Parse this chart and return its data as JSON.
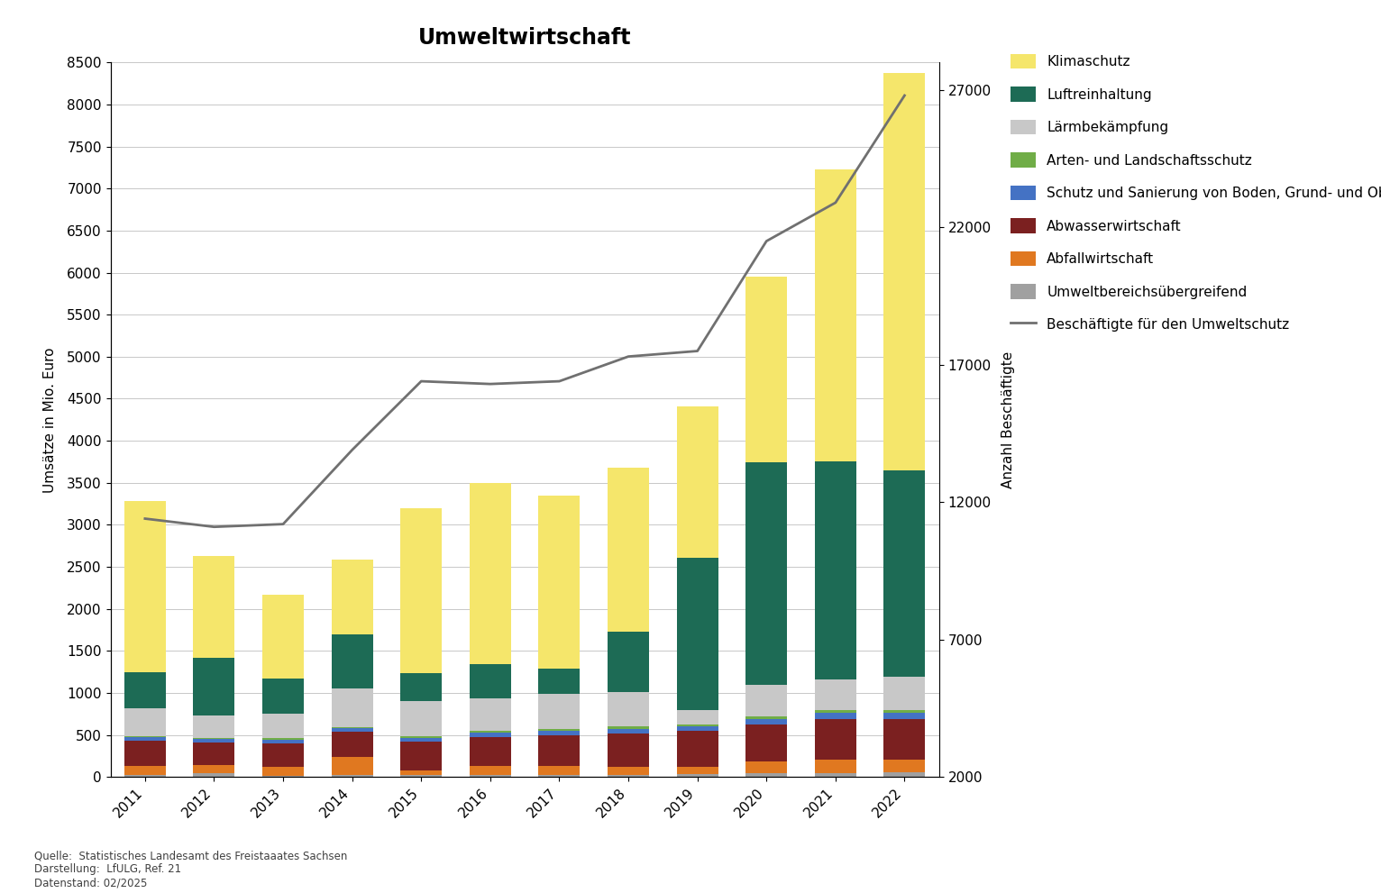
{
  "years": [
    2011,
    2012,
    2013,
    2014,
    2015,
    2016,
    2017,
    2018,
    2019,
    2020,
    2021,
    2022
  ],
  "title": "Umweltwirtschaft",
  "ylabel_left": "Umsätze in Mio. Euro",
  "ylabel_right": "Anzahl Beschäftigte",
  "ylim_left": [
    0,
    8500
  ],
  "ylim_right": [
    2000,
    28000
  ],
  "yticks_left": [
    0,
    500,
    1000,
    1500,
    2000,
    2500,
    3000,
    3500,
    4000,
    4500,
    5000,
    5500,
    6000,
    6500,
    7000,
    7500,
    8000,
    8500
  ],
  "yticks_right": [
    2000,
    7000,
    12000,
    17000,
    22000,
    27000
  ],
  "segments": {
    "Umweltbereichsübergreifend": {
      "color": "#a0a0a0",
      "values": [
        25,
        40,
        15,
        20,
        25,
        25,
        25,
        25,
        30,
        45,
        50,
        55
      ]
    },
    "Abfallwirtschaft": {
      "color": "#e07820",
      "values": [
        105,
        100,
        100,
        220,
        50,
        110,
        110,
        95,
        95,
        140,
        155,
        150
      ]
    },
    "Abwasserwirtschaft": {
      "color": "#7b2020",
      "values": [
        300,
        270,
        285,
        300,
        340,
        340,
        360,
        400,
        420,
        440,
        480,
        480
      ]
    },
    "Schutz und Sanierung von Boden, Grund-\nund Oberflächenwasser": {
      "color": "#4472c4",
      "values": [
        40,
        38,
        40,
        38,
        45,
        50,
        50,
        55,
        55,
        65,
        75,
        75
      ]
    },
    "Arten- und Landschaftsschutz": {
      "color": "#70ad47",
      "values": [
        18,
        18,
        18,
        18,
        22,
        22,
        22,
        22,
        25,
        25,
        30,
        35
      ]
    },
    "Lärmbekämpfung": {
      "color": "#c8c8c8",
      "values": [
        330,
        265,
        295,
        455,
        420,
        385,
        420,
        415,
        175,
        385,
        370,
        395
      ]
    },
    "Luftreinhaltung": {
      "color": "#1d6b55",
      "values": [
        430,
        690,
        420,
        640,
        330,
        415,
        300,
        720,
        1810,
        2640,
        2590,
        2460
      ]
    },
    "Klimaschutz": {
      "color": "#f5e66b",
      "values": [
        2035,
        1210,
        990,
        895,
        1960,
        2155,
        2055,
        1945,
        1800,
        2215,
        3480,
        4720
      ]
    }
  },
  "line": {
    "label": "Beschäftigte für den Umweltschutz",
    "color": "#707070",
    "values": [
      11400,
      11100,
      11200,
      13900,
      16400,
      16300,
      16400,
      17300,
      17500,
      21500,
      22900,
      26800
    ]
  },
  "footnote": "Quelle:  Statistisches Landesamt des Freistaaates Sachsen\nDarstellung:  LfULG, Ref. 21\nDatenstand: 02/2025",
  "background_color": "#ffffff",
  "title_fontsize": 17,
  "axis_fontsize": 11,
  "tick_fontsize": 11,
  "legend_fontsize": 11
}
